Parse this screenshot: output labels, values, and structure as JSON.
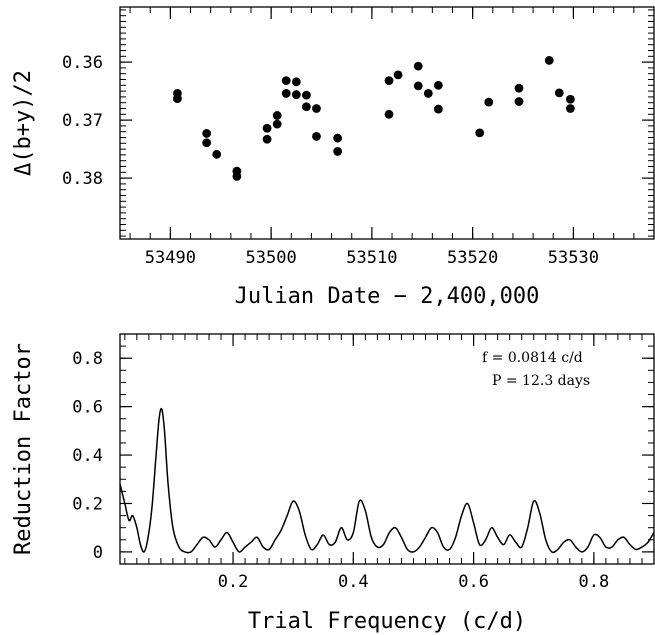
{
  "chart_data": [
    {
      "type": "scatter",
      "xlabel": "Julian Date − 2,400,000",
      "ylabel": "Δ(b+y)/2",
      "xlim": [
        53485,
        53538
      ],
      "ylim": [
        0.3905,
        0.3505
      ],
      "y_inverted": true,
      "xticks": [
        53490,
        53500,
        53510,
        53520,
        53530
      ],
      "xtick_labels": [
        "53490",
        "53500",
        "53510",
        "53520",
        "53530"
      ],
      "yticks": [
        0.36,
        0.37,
        0.38
      ],
      "ytick_labels": [
        "0.36",
        "0.37",
        "0.38"
      ],
      "marker_color": "#000000",
      "points": [
        [
          53490.7,
          0.3654
        ],
        [
          53490.7,
          0.3663
        ],
        [
          53493.6,
          0.3723
        ],
        [
          53493.6,
          0.3739
        ],
        [
          53494.6,
          0.3759
        ],
        [
          53496.6,
          0.3788
        ],
        [
          53496.6,
          0.3797
        ],
        [
          53499.6,
          0.3733
        ],
        [
          53499.6,
          0.3714
        ],
        [
          53500.6,
          0.3707
        ],
        [
          53500.6,
          0.3692
        ],
        [
          53501.5,
          0.3632
        ],
        [
          53501.5,
          0.3654
        ],
        [
          53502.5,
          0.3634
        ],
        [
          53502.5,
          0.3656
        ],
        [
          53503.5,
          0.3657
        ],
        [
          53503.5,
          0.3677
        ],
        [
          53504.5,
          0.3728
        ],
        [
          53504.5,
          0.368
        ],
        [
          53506.6,
          0.3731
        ],
        [
          53506.6,
          0.3754
        ],
        [
          53511.7,
          0.3632
        ],
        [
          53511.7,
          0.369
        ],
        [
          53512.6,
          0.3622
        ],
        [
          53514.6,
          0.3607
        ],
        [
          53514.6,
          0.3641
        ],
        [
          53515.6,
          0.3654
        ],
        [
          53516.6,
          0.364
        ],
        [
          53516.6,
          0.3681
        ],
        [
          53520.7,
          0.3722
        ],
        [
          53521.6,
          0.3669
        ],
        [
          53524.6,
          0.3668
        ],
        [
          53524.6,
          0.3645
        ],
        [
          53527.6,
          0.3597
        ],
        [
          53528.6,
          0.3653
        ],
        [
          53529.7,
          0.3664
        ],
        [
          53529.7,
          0.368
        ]
      ]
    },
    {
      "type": "line",
      "xlabel": "Trial Frequency (c/d)",
      "ylabel": "Reduction Factor",
      "xlim": [
        0.012,
        0.9
      ],
      "ylim": [
        -0.05,
        0.9
      ],
      "xticks": [
        0.2,
        0.4,
        0.6,
        0.8
      ],
      "xtick_labels": [
        "0.2",
        "0.4",
        "0.6",
        "0.8"
      ],
      "yticks": [
        0,
        0.2,
        0.4,
        0.6,
        0.8
      ],
      "ytick_labels": [
        "0",
        "0.2",
        "0.4",
        "0.6",
        "0.8"
      ],
      "annotations": [
        "f = 0.0814 c/d",
        "P = 12.3 days"
      ],
      "line_color": "#000000",
      "x": [
        0.012,
        0.02,
        0.027,
        0.033,
        0.04,
        0.046,
        0.052,
        0.058,
        0.065,
        0.072,
        0.077,
        0.0814,
        0.086,
        0.092,
        0.1,
        0.11,
        0.12,
        0.13,
        0.14,
        0.15,
        0.16,
        0.17,
        0.18,
        0.19,
        0.2,
        0.21,
        0.22,
        0.23,
        0.24,
        0.25,
        0.26,
        0.27,
        0.28,
        0.29,
        0.3,
        0.31,
        0.32,
        0.33,
        0.34,
        0.35,
        0.36,
        0.37,
        0.38,
        0.39,
        0.4,
        0.41,
        0.42,
        0.43,
        0.44,
        0.45,
        0.46,
        0.47,
        0.48,
        0.49,
        0.5,
        0.51,
        0.52,
        0.53,
        0.54,
        0.55,
        0.56,
        0.57,
        0.58,
        0.59,
        0.6,
        0.61,
        0.62,
        0.63,
        0.64,
        0.65,
        0.66,
        0.67,
        0.68,
        0.69,
        0.7,
        0.71,
        0.72,
        0.73,
        0.74,
        0.75,
        0.76,
        0.77,
        0.78,
        0.79,
        0.8,
        0.81,
        0.82,
        0.83,
        0.84,
        0.85,
        0.86,
        0.87,
        0.88,
        0.89,
        0.9
      ],
      "y": [
        0.28,
        0.2,
        0.13,
        0.15,
        0.1,
        0.03,
        0.0,
        0.05,
        0.18,
        0.4,
        0.55,
        0.59,
        0.5,
        0.28,
        0.1,
        0.02,
        0.0,
        0.0,
        0.03,
        0.06,
        0.05,
        0.02,
        0.05,
        0.08,
        0.04,
        0.0,
        0.02,
        0.04,
        0.06,
        0.02,
        0.01,
        0.05,
        0.09,
        0.15,
        0.21,
        0.17,
        0.07,
        0.01,
        0.03,
        0.07,
        0.03,
        0.04,
        0.1,
        0.05,
        0.08,
        0.21,
        0.17,
        0.06,
        0.02,
        0.03,
        0.08,
        0.1,
        0.06,
        0.01,
        0.0,
        0.02,
        0.06,
        0.1,
        0.08,
        0.02,
        0.01,
        0.06,
        0.15,
        0.2,
        0.12,
        0.03,
        0.05,
        0.1,
        0.06,
        0.03,
        0.07,
        0.04,
        0.02,
        0.1,
        0.21,
        0.16,
        0.05,
        0.0,
        0.01,
        0.04,
        0.05,
        0.02,
        0.0,
        0.02,
        0.07,
        0.06,
        0.02,
        0.02,
        0.05,
        0.06,
        0.03,
        0.01,
        0.02,
        0.04,
        0.08
      ]
    }
  ]
}
